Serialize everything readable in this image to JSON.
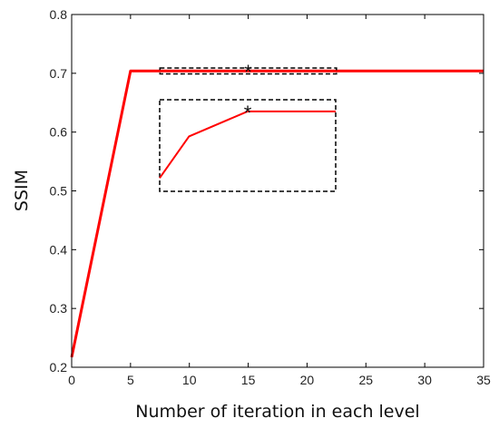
{
  "chart_data": {
    "type": "line",
    "xlabel": "Number of iteration in each level",
    "ylabel": "SSIM",
    "xlim": [
      0,
      35
    ],
    "ylim": [
      0.2,
      0.8
    ],
    "xticks": [
      "0",
      "5",
      "10",
      "15",
      "20",
      "25",
      "30",
      "35"
    ],
    "yticks": [
      "0.2",
      "0.3",
      "0.4",
      "0.5",
      "0.6",
      "0.7",
      "0.8"
    ],
    "grid": false,
    "series": [
      {
        "color": "#ff0000",
        "x": [
          0,
          5,
          10,
          15,
          20,
          25,
          30,
          35
        ],
        "y": [
          0.217,
          0.704,
          0.704,
          0.704,
          0.704,
          0.704,
          0.704,
          0.704
        ]
      }
    ],
    "highlight": {
      "x_range": [
        7.5,
        22.5
      ],
      "y_range": [
        0.699,
        0.709
      ],
      "marker_x": 15,
      "marker_y": 0.704,
      "marker_symbol": "*"
    },
    "inset": {
      "x": [
        7.5,
        10,
        15,
        22.5
      ],
      "y": [
        0.7005,
        0.703,
        0.7045,
        0.7045
      ],
      "x_range": [
        7.5,
        22.5
      ],
      "y_range": [
        0.6997,
        0.7052
      ],
      "marker_x": 15,
      "marker_y": 0.7045,
      "marker_symbol": "*",
      "color": "#ff0000"
    }
  }
}
